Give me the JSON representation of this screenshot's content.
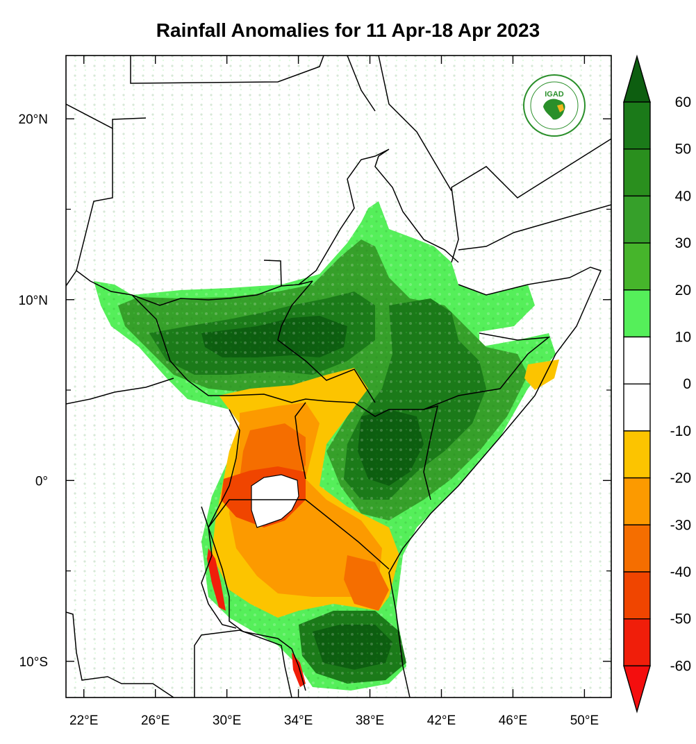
{
  "title": "Rainfall Anomalies for 11 Apr-18 Apr 2023",
  "logo_text": "IGAD",
  "map": {
    "lon_range": [
      21.0,
      51.5
    ],
    "lat_range": [
      -12.0,
      23.5
    ],
    "lon_ticks": [
      {
        "value": 22,
        "label": "22°E"
      },
      {
        "value": 26,
        "label": "26°E"
      },
      {
        "value": 30,
        "label": "30°E"
      },
      {
        "value": 34,
        "label": "34°E"
      },
      {
        "value": 38,
        "label": "38°E"
      },
      {
        "value": 42,
        "label": "42°E"
      },
      {
        "value": 46,
        "label": "46°E"
      },
      {
        "value": 50,
        "label": "50°E"
      }
    ],
    "lat_ticks": [
      {
        "value": 20,
        "label": "20°N"
      },
      {
        "value": 10,
        "label": "10°N"
      },
      {
        "value": 0,
        "label": "0°"
      },
      {
        "value": -10,
        "label": "10°S"
      }
    ],
    "minor_lat_ticks": [
      15,
      5,
      -5
    ]
  },
  "colorbar": {
    "labels": [
      "60",
      "50",
      "40",
      "30",
      "20",
      "10",
      "0",
      "-10",
      "-20",
      "-30",
      "-40",
      "-50",
      "-60"
    ],
    "colors": [
      "#0d5e10",
      "#1b7a19",
      "#2a8f1e",
      "#36a02a",
      "#46b52b",
      "#55ef5a",
      "#ffffff",
      "#ffffff",
      "#fcc400",
      "#fc9a00",
      "#f56e00",
      "#f04500",
      "#f01e0a",
      "#f40e0e"
    ],
    "top_color": "#0d5e10",
    "bottom_color": "#f40e0e"
  }
}
